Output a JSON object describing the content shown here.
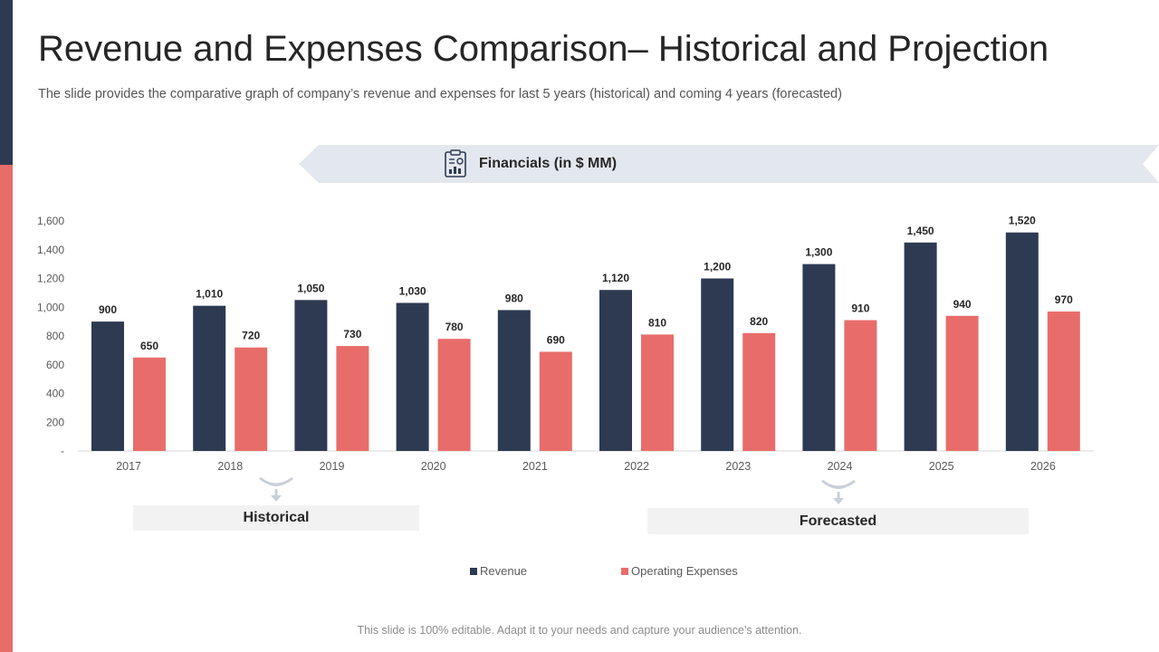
{
  "slide": {
    "title": "Revenue and Expenses Comparison– Historical and Projection",
    "subtitle": "The slide provides the comparative graph of company’s revenue and expenses for last 5 years (historical) and coming 4 years (forecasted)",
    "banner_label": "Financials (in $ MM)",
    "historical_label": "Historical",
    "forecasted_label": "Forecasted",
    "footer": "This slide is 100% editable. Adapt it to your needs and capture your audience’s attention."
  },
  "colors": {
    "revenue": "#2d3a52",
    "expenses": "#e86d6a",
    "banner": "#e3e7ee"
  },
  "chart_data": {
    "type": "bar",
    "categories": [
      "2017",
      "2018",
      "2019",
      "2020",
      "2021",
      "2022",
      "2023",
      "2024",
      "2025",
      "2026"
    ],
    "series": [
      {
        "name": "Revenue",
        "values": [
          900,
          1010,
          1050,
          1030,
          980,
          1120,
          1200,
          1300,
          1450,
          1520
        ]
      },
      {
        "name": "Operating Expenses",
        "values": [
          650,
          720,
          730,
          780,
          690,
          810,
          820,
          910,
          940,
          970
        ]
      }
    ],
    "yticks": [
      "-",
      "200",
      "400",
      "600",
      "800",
      "1,000",
      "1,200",
      "1,400",
      "1,600"
    ],
    "ylim": [
      0,
      1600
    ],
    "grid": false,
    "legend_position": "bottom",
    "data_labels": true
  }
}
